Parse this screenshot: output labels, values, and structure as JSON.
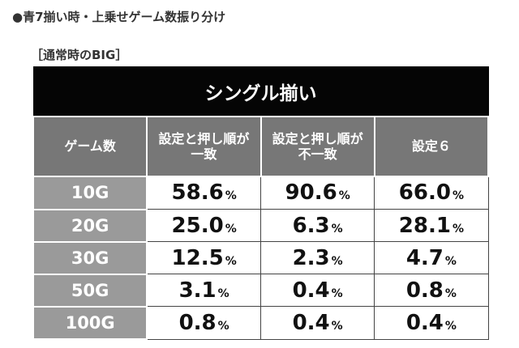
{
  "heading": "●青7揃い時・上乗せゲーム数振り分け",
  "subheading": "［通常時のBIG］",
  "table": {
    "title": "シングル揃い",
    "corner_header": "ゲーム数",
    "col_headers": [
      {
        "line1": "設定と押し順が",
        "line2": "一致"
      },
      {
        "line1": "設定と押し順が",
        "line2": "不一致"
      },
      {
        "line1": "設定６",
        "line2": ""
      }
    ],
    "unit": "%",
    "rows": [
      {
        "label": "10G",
        "values": [
          "58.6",
          "90.6",
          "66.0"
        ]
      },
      {
        "label": "20G",
        "values": [
          "25.0",
          "6.3",
          "28.1"
        ]
      },
      {
        "label": "30G",
        "values": [
          "12.5",
          "2.3",
          "4.7"
        ]
      },
      {
        "label": "50G",
        "values": [
          "3.1",
          "0.4",
          "0.8"
        ]
      },
      {
        "label": "100G",
        "values": [
          "0.8",
          "0.4",
          "0.4"
        ]
      }
    ]
  },
  "colors": {
    "title_bg": "#050505",
    "header_bg": "#777777",
    "row_label_bg": "#9a9a9a"
  }
}
